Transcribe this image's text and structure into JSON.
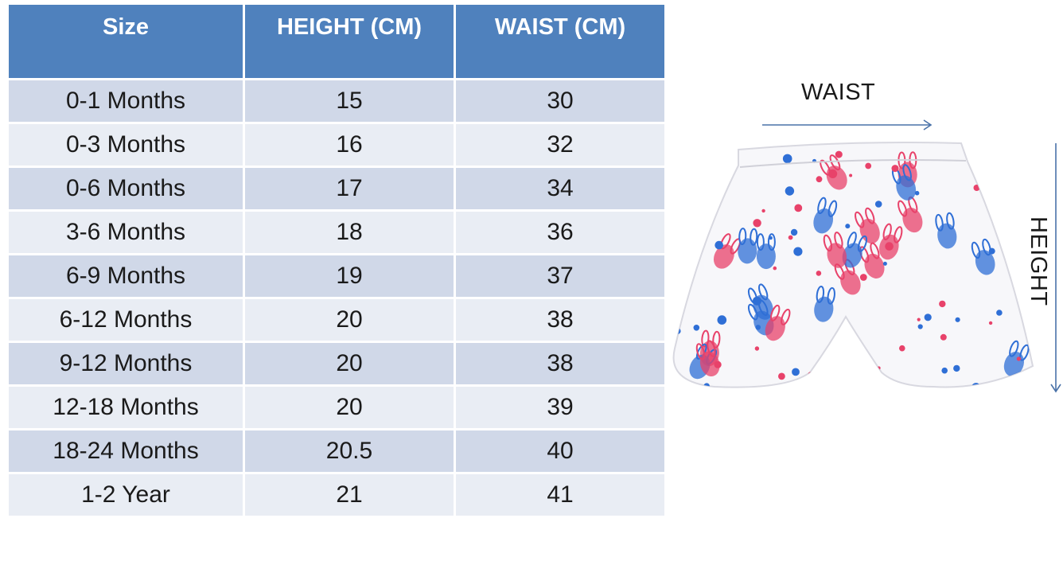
{
  "table": {
    "headers": [
      "Size",
      "HEIGHT (CM)",
      "WAIST (CM)"
    ],
    "rows": [
      {
        "size": "0-1 Months",
        "height": "15",
        "waist": "30"
      },
      {
        "size": "0-3 Months",
        "height": "16",
        "waist": "32"
      },
      {
        "size": "0-6 Months",
        "height": "17",
        "waist": "34"
      },
      {
        "size": "3-6 Months",
        "height": "18",
        "waist": "36"
      },
      {
        "size": "6-9 Months",
        "height": "19",
        "waist": "37"
      },
      {
        "size": "6-12 Months",
        "height": "20",
        "waist": "38"
      },
      {
        "size": "9-12 Months",
        "height": "20",
        "waist": "38"
      },
      {
        "size": "12-18 Months",
        "height": "20",
        "waist": "39"
      },
      {
        "size": "18-24 Months",
        "height": "20.5",
        "waist": "40"
      },
      {
        "size": "1-2 Year",
        "height": "21",
        "waist": "41"
      }
    ]
  },
  "diagram": {
    "waist_label": "WAIST",
    "height_label": "HEIGHT",
    "arrow_color": "#4a72a8"
  },
  "colors": {
    "header_bg": "#4f81bd",
    "row_dark": "#d0d8e8",
    "row_light": "#e9edf4",
    "print_red": "#e8426a",
    "print_blue": "#2f6fd6"
  }
}
